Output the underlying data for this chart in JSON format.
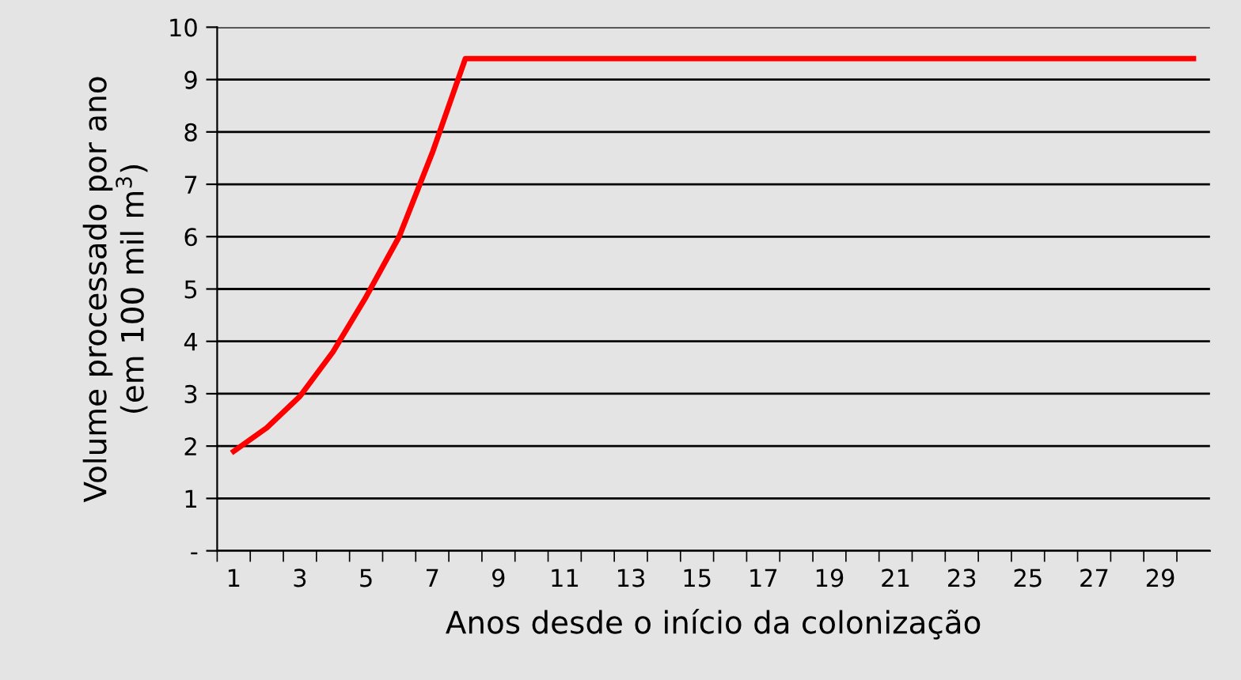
{
  "chart_data": {
    "type": "line",
    "xlabel": "Anos desde o início da colonização",
    "ylabel": "Volume processado por ano\n(em 100 mil m$^{3}$)",
    "categories": [
      "1",
      null,
      "3",
      null,
      "5",
      null,
      "7",
      null,
      "9",
      null,
      "11",
      null,
      "13",
      null,
      "15",
      null,
      "17",
      null,
      "19",
      null,
      "21",
      null,
      "23",
      null,
      "25",
      null,
      "27",
      null,
      "29",
      null
    ],
    "series": [
      {
        "color": "#ff0000",
        "values": [
          1.9,
          2.35,
          2.95,
          3.8,
          4.85,
          6.0,
          7.6,
          9.4,
          9.4,
          9.4,
          9.4,
          9.4,
          9.4,
          9.4,
          9.4,
          9.4,
          9.4,
          9.4,
          9.4,
          9.4,
          9.4,
          9.4,
          9.4,
          9.4,
          9.4,
          9.4,
          9.4,
          9.4,
          9.4,
          9.4
        ]
      }
    ],
    "ylim": [
      0,
      10
    ],
    "yticks": [
      {
        "value": 0,
        "label": "-"
      },
      1,
      2,
      3,
      4,
      5,
      6,
      7,
      8,
      9,
      10
    ],
    "grid": "y",
    "legend": false,
    "marker": "none",
    "line_style": "solid"
  }
}
